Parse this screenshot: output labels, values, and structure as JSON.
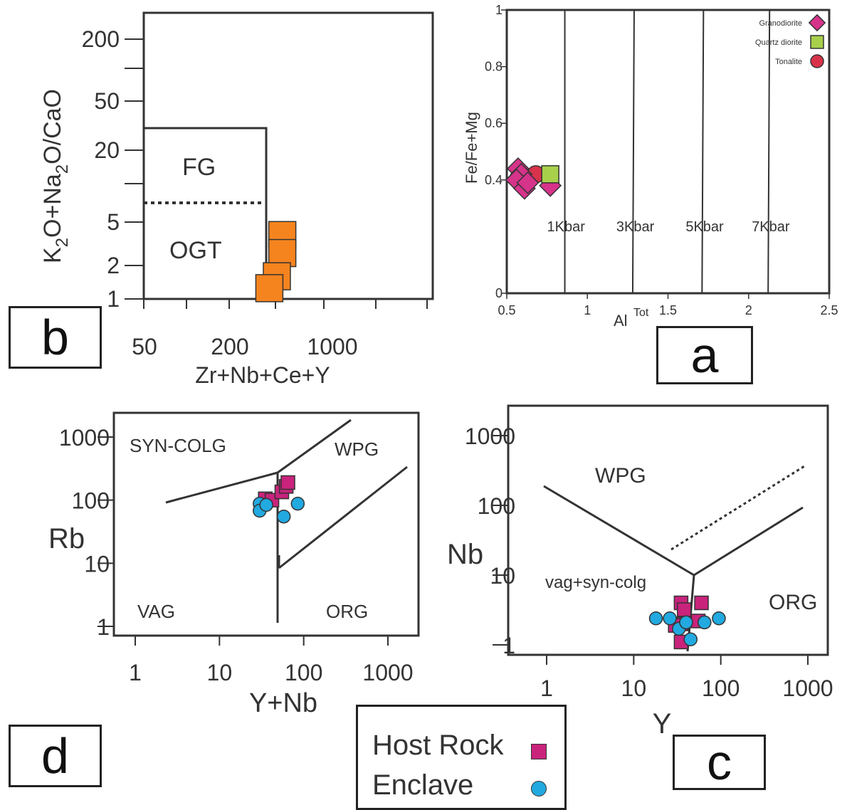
{
  "chart_data": [
    {
      "panel": "a",
      "type": "scatter",
      "xlabel": "Al",
      "xlabel_sup": "Tot",
      "ylabel": "Fe/Fe+Mg",
      "xlim": [
        0.5,
        2.5
      ],
      "ylim": [
        0,
        1
      ],
      "xticks": [
        0.5,
        1,
        1.5,
        2,
        2.5
      ],
      "xtick_labels": [
        "0.5",
        "1",
        "1.5",
        "2",
        "2.5"
      ],
      "yticks": [
        0,
        0.4,
        0.6,
        0.8,
        1
      ],
      "ytick_labels": [
        "0",
        "0.4",
        "0.6",
        "0.8",
        "1"
      ],
      "boundaries": [
        {
          "x": 0.86,
          "label": "1Kbar"
        },
        {
          "x": 1.29,
          "label": "3Kbar"
        },
        {
          "x": 1.72,
          "label": "5Kbar"
        },
        {
          "x": 2.13,
          "label": "7Kbar"
        }
      ],
      "legend": [
        {
          "name": "Granodiorite",
          "marker": "diamond",
          "color": "#d6338a"
        },
        {
          "name": "Quartz diorite",
          "marker": "square",
          "color": "#a8d04b"
        },
        {
          "name": "Tonalite",
          "marker": "circle",
          "color": "#d8334a"
        }
      ],
      "series": [
        {
          "name": "Granodiorite",
          "points": [
            [
              0.57,
              0.44
            ],
            [
              0.59,
              0.42
            ],
            [
              0.56,
              0.4
            ],
            [
              0.61,
              0.37
            ],
            [
              0.63,
              0.39
            ],
            [
              0.77,
              0.38
            ]
          ]
        },
        {
          "name": "Quartz diorite",
          "points": [
            [
              0.77,
              0.42
            ]
          ]
        },
        {
          "name": "Tonalite",
          "points": [
            [
              0.68,
              0.42
            ]
          ]
        }
      ]
    },
    {
      "panel": "b",
      "type": "scatter",
      "xlabel": "Zr+Nb+Ce+Y",
      "ylabel_parts": [
        "K",
        "2",
        "O+Na",
        "2",
        "O/CaO"
      ],
      "xscale": "log",
      "yscale": "log",
      "xlim": [
        30,
        2500
      ],
      "ylim": [
        1,
        300
      ],
      "xticks": [
        50,
        200,
        1000
      ],
      "yticks": [
        1,
        2,
        5,
        20,
        50,
        200
      ],
      "fields": [
        "FG",
        "OGT"
      ],
      "series": [
        {
          "marker": "square",
          "color": "#f5841f",
          "points": [
            [
              250,
              3.8
            ],
            [
              250,
              2.6
            ],
            [
              230,
              1.6
            ],
            [
              205,
              1.25
            ]
          ]
        }
      ]
    },
    {
      "panel": "d",
      "type": "scatter",
      "xlabel": "Y+Nb",
      "ylabel": "Rb",
      "xscale": "log",
      "yscale": "log",
      "xlim": [
        1,
        2000
      ],
      "ylim": [
        1,
        2000
      ],
      "xticks": [
        1,
        10,
        100,
        1000
      ],
      "yticks": [
        1,
        10,
        100,
        1000
      ],
      "fields": [
        "SYN-COLG",
        "WPG",
        "VAG",
        "ORG"
      ],
      "series": [
        {
          "name": "Host Rock",
          "marker": "square",
          "color": "#c9237c",
          "points": [
            [
              35,
              105
            ],
            [
              42,
              100
            ],
            [
              55,
              135
            ],
            [
              62,
              165
            ],
            [
              65,
              190
            ]
          ]
        },
        {
          "name": "Enclave",
          "marker": "circle",
          "color": "#22a9e0",
          "points": [
            [
              30,
              88
            ],
            [
              30,
              68
            ],
            [
              36,
              84
            ],
            [
              58,
              55
            ],
            [
              85,
              88
            ]
          ]
        }
      ]
    },
    {
      "panel": "c",
      "type": "scatter",
      "xlabel": "Y",
      "ylabel": "Nb",
      "xscale": "log",
      "yscale": "log",
      "xlim": [
        1,
        2000
      ],
      "ylim": [
        0.8,
        3000
      ],
      "xticks": [
        1,
        10,
        100,
        1000
      ],
      "yticks": [
        1,
        10,
        100,
        1000
      ],
      "fields": [
        "WPG",
        "vag+syn-colg",
        "ORG"
      ],
      "series": [
        {
          "name": "Host Rock",
          "marker": "square",
          "color": "#c9237c",
          "points": [
            [
              35,
              4
            ],
            [
              38,
              3.2
            ],
            [
              35,
              2
            ],
            [
              30,
              1.9
            ],
            [
              35,
              1.1
            ],
            [
              60,
              4
            ],
            [
              55,
              2.2
            ]
          ]
        },
        {
          "name": "Enclave",
          "marker": "circle",
          "color": "#22a9e0",
          "points": [
            [
              18,
              2.4
            ],
            [
              26,
              2.4
            ],
            [
              33,
              1.7
            ],
            [
              40,
              2.1
            ],
            [
              45,
              1.2
            ],
            [
              65,
              2.1
            ],
            [
              95,
              2.4
            ]
          ]
        }
      ]
    }
  ],
  "panel_labels": {
    "a": "a",
    "b": "b",
    "c": "c",
    "d": "d"
  },
  "legend": {
    "host_rock": "Host Rock",
    "enclave": "Enclave"
  }
}
